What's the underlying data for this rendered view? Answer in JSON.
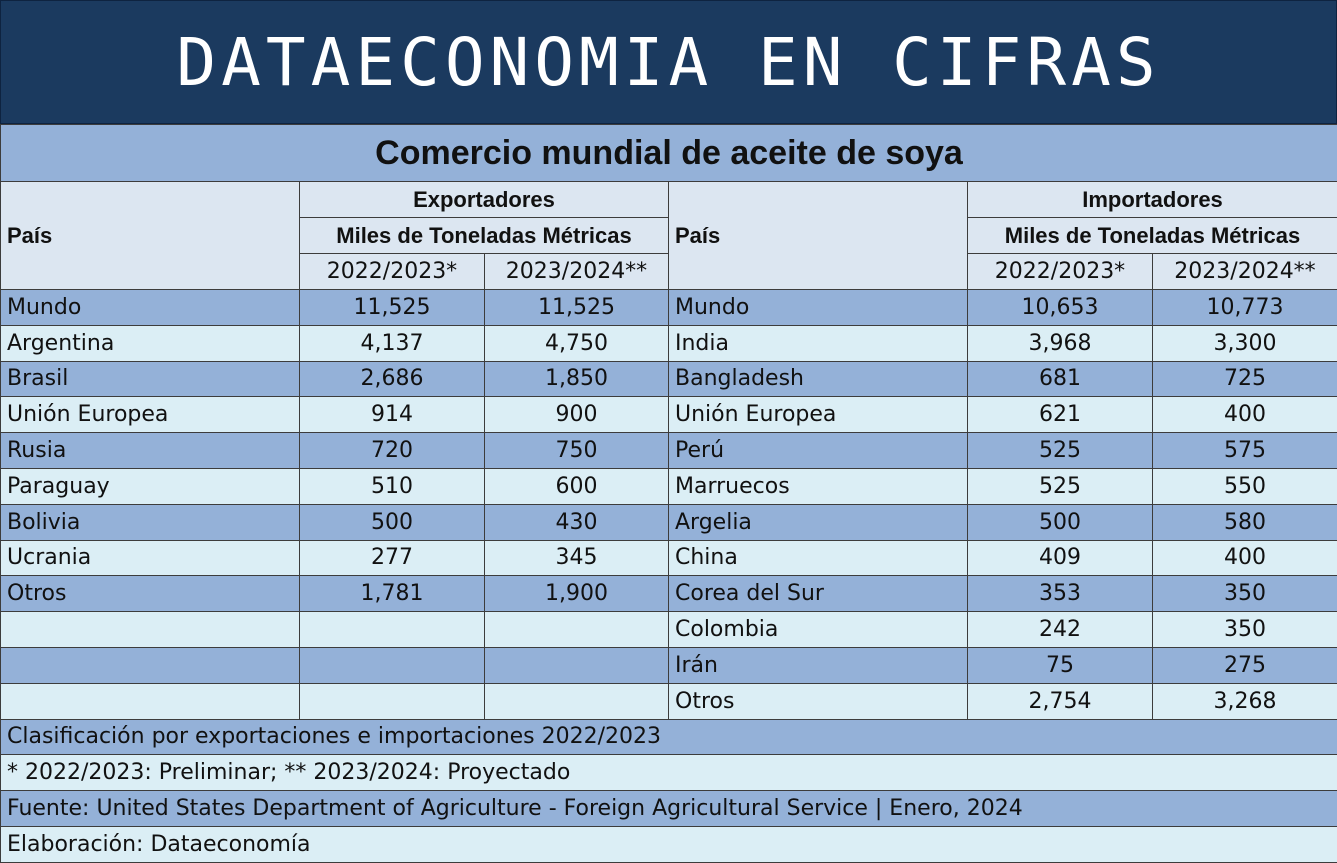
{
  "banner_title": "DATAECONOMIA EN CIFRAS",
  "table_title": "Comercio mundial de aceite de soya",
  "headers": {
    "pais": "País",
    "exporters": "Exportadores",
    "importers": "Importadores",
    "unit": "Miles de Toneladas Métricas",
    "year1": "2022/2023*",
    "year2": "2023/2024**"
  },
  "rows": [
    {
      "exp_country": "Mundo",
      "exp_y1": "11,525",
      "exp_y2": "11,525",
      "imp_country": "Mundo",
      "imp_y1": "10,653",
      "imp_y2": "10,773"
    },
    {
      "exp_country": "Argentina",
      "exp_y1": "4,137",
      "exp_y2": "4,750",
      "imp_country": "India",
      "imp_y1": "3,968",
      "imp_y2": "3,300"
    },
    {
      "exp_country": "Brasil",
      "exp_y1": "2,686",
      "exp_y2": "1,850",
      "imp_country": "Bangladesh",
      "imp_y1": "681",
      "imp_y2": "725"
    },
    {
      "exp_country": "Unión Europea",
      "exp_y1": "914",
      "exp_y2": "900",
      "imp_country": "Unión Europea",
      "imp_y1": "621",
      "imp_y2": "400"
    },
    {
      "exp_country": "Rusia",
      "exp_y1": "720",
      "exp_y2": "750",
      "imp_country": "Perú",
      "imp_y1": "525",
      "imp_y2": "575"
    },
    {
      "exp_country": "Paraguay",
      "exp_y1": "510",
      "exp_y2": "600",
      "imp_country": "Marruecos",
      "imp_y1": "525",
      "imp_y2": "550"
    },
    {
      "exp_country": "Bolivia",
      "exp_y1": "500",
      "exp_y2": "430",
      "imp_country": "Argelia",
      "imp_y1": "500",
      "imp_y2": "580"
    },
    {
      "exp_country": "Ucrania",
      "exp_y1": "277",
      "exp_y2": "345",
      "imp_country": "China",
      "imp_y1": "409",
      "imp_y2": "400"
    },
    {
      "exp_country": "Otros",
      "exp_y1": "1,781",
      "exp_y2": "1,900",
      "imp_country": "Corea del Sur",
      "imp_y1": "353",
      "imp_y2": "350"
    },
    {
      "exp_country": "",
      "exp_y1": "",
      "exp_y2": "",
      "imp_country": "Colombia",
      "imp_y1": "242",
      "imp_y2": "350"
    },
    {
      "exp_country": "",
      "exp_y1": "",
      "exp_y2": "",
      "imp_country": "Irán",
      "imp_y1": "75",
      "imp_y2": "275"
    },
    {
      "exp_country": "",
      "exp_y1": "",
      "exp_y2": "",
      "imp_country": "Otros",
      "imp_y1": "2,754",
      "imp_y2": "3,268"
    }
  ],
  "notes": [
    "Clasificación por exportaciones e importaciones 2022/2023",
    "* 2022/2023: Preliminar; ** 2023/2024: Proyectado",
    "Fuente: United States Department of Agriculture - Foreign Agricultural Service | Enero, 2024",
    "Elaboración: Dataeconomía"
  ],
  "colors": {
    "banner": "#1b3a5f",
    "band_dark": "#94b1d8",
    "band_light": "#dbeef5",
    "header_bg": "#dce6f1"
  }
}
